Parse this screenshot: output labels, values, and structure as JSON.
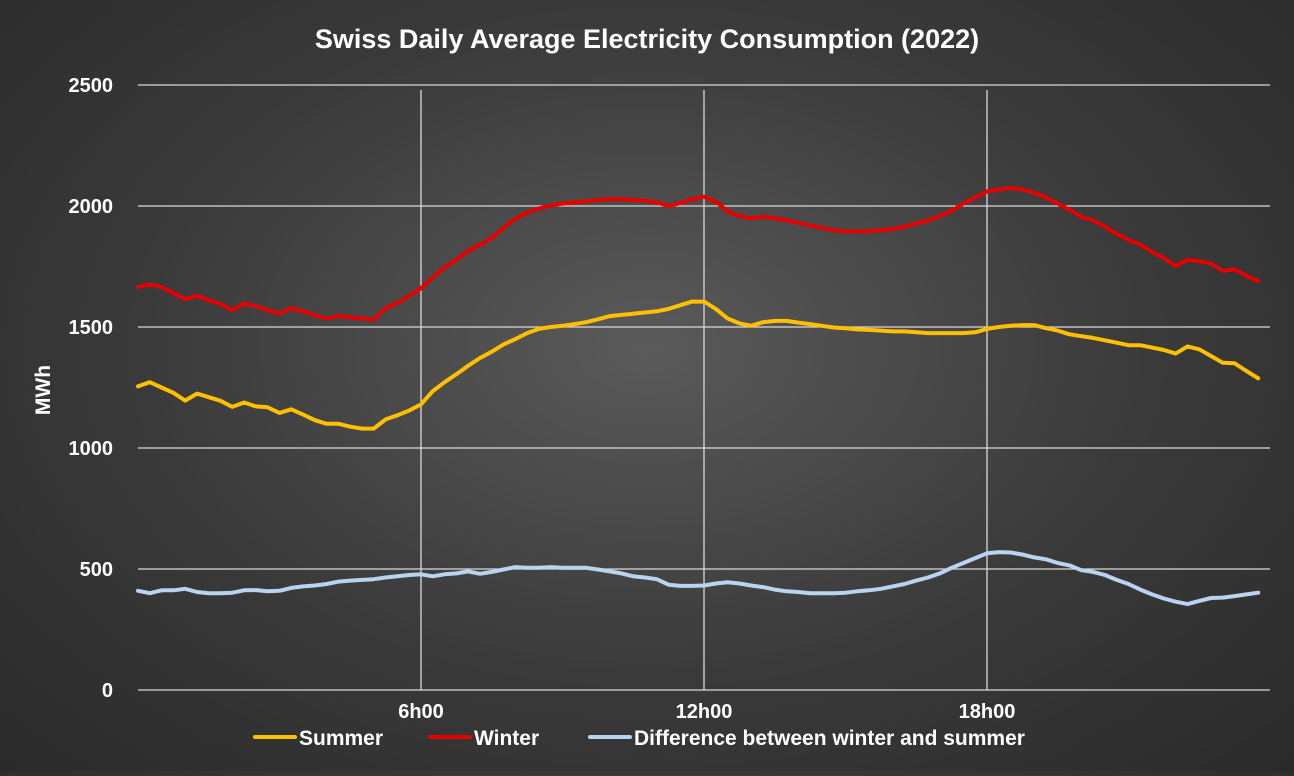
{
  "chart_data": {
    "type": "line",
    "title": "Swiss Daily Average Electricity Consumption (2022)",
    "xlabel": "",
    "ylabel": "MWh",
    "ylim": [
      0,
      2500
    ],
    "xlim": [
      0,
      24
    ],
    "yticks": [
      0,
      500,
      1000,
      1500,
      2000,
      2500
    ],
    "x_tick_labels": [
      {
        "x": 6,
        "label": "6h00"
      },
      {
        "x": 12,
        "label": "12h00"
      },
      {
        "x": 18,
        "label": "18h00"
      }
    ],
    "grid": "on",
    "legend_position": "bottom",
    "x": [
      0,
      0.25,
      0.5,
      0.75,
      1,
      1.25,
      1.5,
      1.75,
      2,
      2.25,
      2.5,
      2.75,
      3,
      3.25,
      3.5,
      3.75,
      4,
      4.25,
      4.5,
      4.75,
      5,
      5.25,
      5.5,
      5.75,
      6,
      6.25,
      6.5,
      6.75,
      7,
      7.25,
      7.5,
      7.75,
      8,
      8.25,
      8.5,
      8.75,
      9,
      9.25,
      9.5,
      9.75,
      10,
      10.25,
      10.5,
      10.75,
      11,
      11.25,
      11.5,
      11.75,
      12,
      12.25,
      12.5,
      12.75,
      13,
      13.25,
      13.5,
      13.75,
      14,
      14.25,
      14.5,
      14.75,
      15,
      15.25,
      15.5,
      15.75,
      16,
      16.25,
      16.5,
      16.75,
      17,
      17.25,
      17.5,
      17.75,
      18,
      18.25,
      18.5,
      18.75,
      19,
      19.25,
      19.5,
      19.75,
      20,
      20.25,
      20.5,
      20.75,
      21,
      21.25,
      21.5,
      21.75,
      22,
      22.25,
      22.5,
      22.75,
      23,
      23.25,
      23.5,
      23.75
    ],
    "series": [
      {
        "name": "Summer",
        "color": "#FFC000",
        "values": [
          1255,
          1272,
          1250,
          1228,
          1196,
          1225,
          1210,
          1195,
          1170,
          1188,
          1172,
          1168,
          1145,
          1160,
          1138,
          1115,
          1100,
          1100,
          1088,
          1080,
          1080,
          1118,
          1135,
          1155,
          1180,
          1235,
          1272,
          1305,
          1340,
          1372,
          1398,
          1428,
          1450,
          1475,
          1492,
          1500,
          1505,
          1512,
          1520,
          1532,
          1545,
          1550,
          1555,
          1560,
          1565,
          1575,
          1590,
          1605,
          1605,
          1575,
          1535,
          1515,
          1505,
          1520,
          1525,
          1525,
          1518,
          1512,
          1505,
          1498,
          1495,
          1490,
          1488,
          1485,
          1482,
          1482,
          1478,
          1475,
          1475,
          1475,
          1475,
          1478,
          1492,
          1500,
          1505,
          1508,
          1508,
          1495,
          1485,
          1470,
          1462,
          1455,
          1445,
          1435,
          1425,
          1425,
          1415,
          1405,
          1390,
          1420,
          1408,
          1380,
          1352,
          1350,
          1318,
          1288
        ]
      },
      {
        "name": "Winter",
        "color": "#E60000",
        "values": [
          1665,
          1675,
          1665,
          1640,
          1615,
          1630,
          1610,
          1595,
          1570,
          1598,
          1585,
          1570,
          1555,
          1578,
          1565,
          1548,
          1535,
          1545,
          1540,
          1535,
          1530,
          1578,
          1600,
          1628,
          1660,
          1705,
          1745,
          1778,
          1815,
          1840,
          1868,
          1910,
          1948,
          1972,
          1990,
          2002,
          2010,
          2015,
          2020,
          2025,
          2028,
          2028,
          2025,
          2022,
          2015,
          2000,
          2012,
          2028,
          2038,
          2018,
          1978,
          1958,
          1950,
          1955,
          1950,
          1940,
          1930,
          1920,
          1910,
          1900,
          1895,
          1895,
          1895,
          1900,
          1905,
          1915,
          1928,
          1940,
          1958,
          1980,
          2010,
          2035,
          2060,
          2068,
          2075,
          2068,
          2055,
          2035,
          2010,
          1985,
          1955,
          1940,
          1915,
          1885,
          1860,
          1840,
          1810,
          1785,
          1752,
          1778,
          1772,
          1762,
          1732,
          1738,
          1712,
          1690
        ]
      },
      {
        "name": "Difference between winter and summer",
        "color": "#B9D3F0",
        "values": [
          410,
          400,
          412,
          412,
          418,
          405,
          400,
          400,
          402,
          412,
          413,
          408,
          410,
          422,
          428,
          432,
          438,
          448,
          452,
          455,
          458,
          465,
          470,
          475,
          478,
          470,
          478,
          482,
          490,
          480,
          488,
          498,
          508,
          505,
          505,
          508,
          505,
          505,
          505,
          498,
          490,
          482,
          470,
          465,
          458,
          435,
          430,
          430,
          432,
          440,
          445,
          440,
          432,
          425,
          415,
          408,
          405,
          400,
          400,
          400,
          402,
          408,
          412,
          418,
          428,
          438,
          452,
          465,
          482,
          505,
          525,
          545,
          565,
          570,
          568,
          560,
          548,
          540,
          525,
          515,
          495,
          488,
          475,
          455,
          438,
          415,
          395,
          378,
          365,
          355,
          368,
          380,
          382,
          388,
          395,
          402
        ]
      }
    ]
  }
}
